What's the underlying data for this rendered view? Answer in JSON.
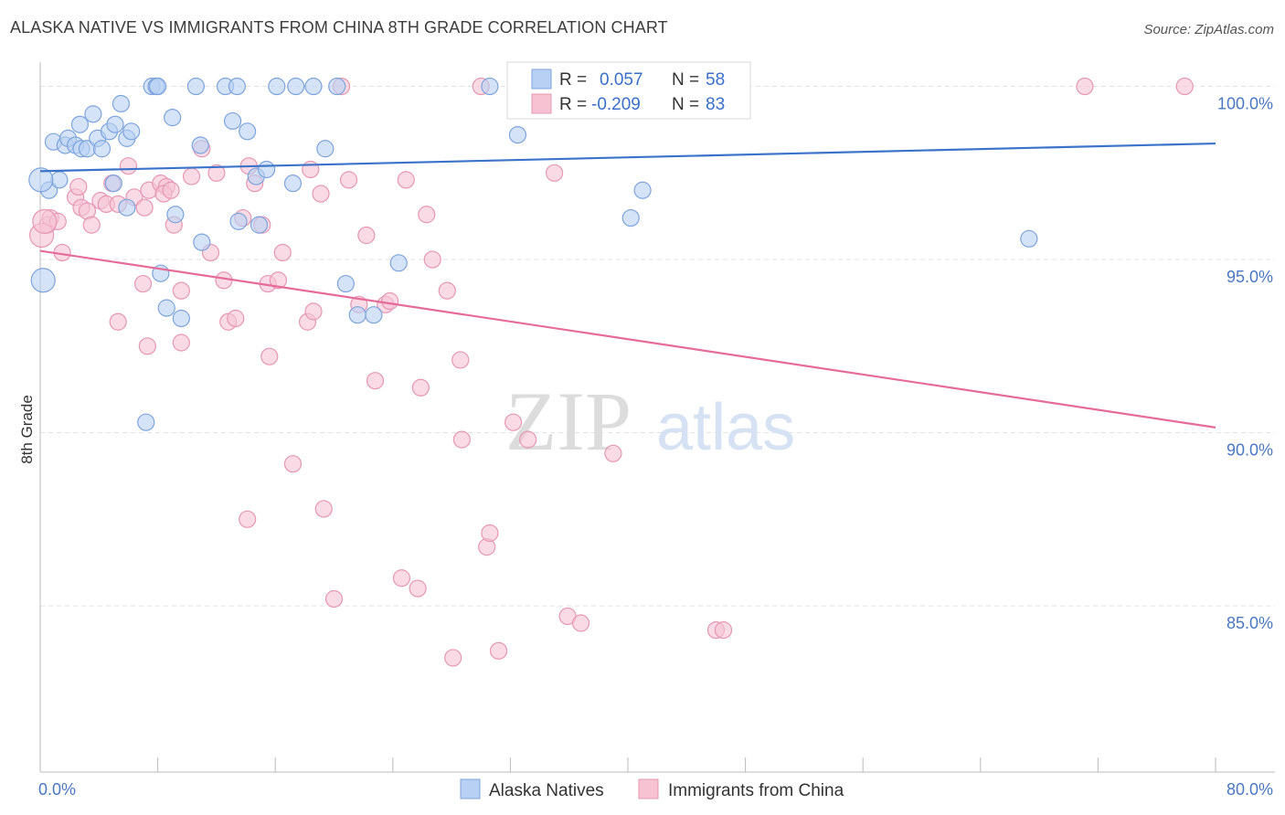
{
  "title": "ALASKA NATIVE VS IMMIGRANTS FROM CHINA 8TH GRADE CORRELATION CHART",
  "source": "Source: ZipAtlas.com",
  "watermark": {
    "zip": "ZIP",
    "atlas": "atlas"
  },
  "colors": {
    "blue": "#3a73c9",
    "blue_fill": "#b8d0f3",
    "pink": "#e56c98",
    "pink_fill": "#f7c3d3",
    "tick": "#4a78c2"
  },
  "chart_data": {
    "type": "scatter",
    "title": "ALASKA NATIVE VS IMMIGRANTS FROM CHINA 8TH GRADE CORRELATION CHART",
    "xlabel": "",
    "ylabel": "8th Grade",
    "xlim": [
      0,
      80
    ],
    "ylim": [
      80.2,
      100.7
    ],
    "x_tick_labels": [
      "0.0%",
      "80.0%"
    ],
    "y_ticks": [
      100,
      95,
      90,
      85
    ],
    "y_tick_labels": [
      "100.0%",
      "95.0%",
      "90.0%",
      "85.0%"
    ],
    "grid": true,
    "legend_position": "bottom-center",
    "series": [
      {
        "name": "Alaska Natives",
        "color": "#3a73c9",
        "R": "0.057",
        "N": "58",
        "trend": {
          "x": [
            0,
            80
          ],
          "y": [
            97.55,
            98.35
          ]
        },
        "points": [
          [
            0.2,
            94.4
          ],
          [
            0.6,
            97.0
          ],
          [
            1.3,
            97.3
          ],
          [
            0.9,
            98.4
          ],
          [
            1.7,
            98.3
          ],
          [
            1.9,
            98.5
          ],
          [
            2.4,
            98.3
          ],
          [
            2.8,
            98.2
          ],
          [
            2.7,
            98.9
          ],
          [
            3.2,
            98.2
          ],
          [
            3.6,
            99.2
          ],
          [
            3.9,
            98.5
          ],
          [
            4.2,
            98.2
          ],
          [
            4.7,
            98.7
          ],
          [
            5.1,
            98.9
          ],
          [
            5.5,
            99.5
          ],
          [
            5.9,
            98.5
          ],
          [
            6.2,
            98.7
          ],
          [
            5.0,
            97.2
          ],
          [
            5.9,
            96.5
          ],
          [
            7.6,
            100.0
          ],
          [
            7.9,
            100.0
          ],
          [
            9.0,
            99.1
          ],
          [
            9.2,
            96.3
          ],
          [
            10.6,
            100.0
          ],
          [
            10.9,
            98.3
          ],
          [
            11.0,
            95.5
          ],
          [
            12.6,
            100.0
          ],
          [
            13.4,
            100.0
          ],
          [
            13.1,
            99.0
          ],
          [
            13.5,
            96.1
          ],
          [
            14.1,
            98.7
          ],
          [
            14.9,
            96.0
          ],
          [
            14.7,
            97.4
          ],
          [
            15.4,
            97.6
          ],
          [
            16.1,
            100.0
          ],
          [
            17.4,
            100.0
          ],
          [
            17.2,
            97.2
          ],
          [
            18.6,
            100.0
          ],
          [
            19.4,
            98.2
          ],
          [
            20.2,
            100.0
          ],
          [
            8.2,
            94.6
          ],
          [
            8.6,
            93.6
          ],
          [
            9.6,
            93.3
          ],
          [
            7.2,
            90.3
          ],
          [
            20.8,
            94.3
          ],
          [
            21.6,
            93.4
          ],
          [
            22.7,
            93.4
          ],
          [
            24.4,
            94.9
          ],
          [
            30.6,
            100.0
          ],
          [
            33.5,
            100.0
          ],
          [
            40.2,
            96.2
          ],
          [
            41.0,
            97.0
          ],
          [
            47.5,
            100.0
          ],
          [
            67.3,
            95.6
          ],
          [
            32.5,
            98.6
          ],
          [
            0.05,
            97.3
          ],
          [
            8.0,
            100.0
          ]
        ]
      },
      {
        "name": "Immigrants from China",
        "color": "#e56c98",
        "R": "-0.209",
        "N": "83",
        "trend": {
          "x": [
            0,
            80
          ],
          "y": [
            95.25,
            90.15
          ]
        },
        "points": [
          [
            0.5,
            96.0
          ],
          [
            0.7,
            96.2
          ],
          [
            1.2,
            96.1
          ],
          [
            1.5,
            95.2
          ],
          [
            2.4,
            96.8
          ],
          [
            2.8,
            96.5
          ],
          [
            2.6,
            97.1
          ],
          [
            3.2,
            96.4
          ],
          [
            3.5,
            96.0
          ],
          [
            4.1,
            96.7
          ],
          [
            4.5,
            96.6
          ],
          [
            4.9,
            97.2
          ],
          [
            5.3,
            96.6
          ],
          [
            6.0,
            97.7
          ],
          [
            6.4,
            96.8
          ],
          [
            7.1,
            96.5
          ],
          [
            7.4,
            97.0
          ],
          [
            8.2,
            97.2
          ],
          [
            8.6,
            97.1
          ],
          [
            8.4,
            96.9
          ],
          [
            8.9,
            97.0
          ],
          [
            9.1,
            96.0
          ],
          [
            9.6,
            94.1
          ],
          [
            10.3,
            97.4
          ],
          [
            11.0,
            98.2
          ],
          [
            11.6,
            95.2
          ],
          [
            12.0,
            97.5
          ],
          [
            12.5,
            94.4
          ],
          [
            12.8,
            93.2
          ],
          [
            13.3,
            93.3
          ],
          [
            13.8,
            96.2
          ],
          [
            14.2,
            97.7
          ],
          [
            14.6,
            97.2
          ],
          [
            15.1,
            96.0
          ],
          [
            15.5,
            94.3
          ],
          [
            16.2,
            94.4
          ],
          [
            16.5,
            95.2
          ],
          [
            18.4,
            97.6
          ],
          [
            19.1,
            96.9
          ],
          [
            18.2,
            93.2
          ],
          [
            18.6,
            93.5
          ],
          [
            21.0,
            97.3
          ],
          [
            21.7,
            93.7
          ],
          [
            22.2,
            95.7
          ],
          [
            22.8,
            91.5
          ],
          [
            23.5,
            93.7
          ],
          [
            23.8,
            93.8
          ],
          [
            24.9,
            97.3
          ],
          [
            25.9,
            91.3
          ],
          [
            26.3,
            96.3
          ],
          [
            26.7,
            95.0
          ],
          [
            27.7,
            94.1
          ],
          [
            28.6,
            92.1
          ],
          [
            28.7,
            89.8
          ],
          [
            32.2,
            90.3
          ],
          [
            33.2,
            89.8
          ],
          [
            30.0,
            100.0
          ],
          [
            20.5,
            100.0
          ],
          [
            35.0,
            97.5
          ],
          [
            39.0,
            89.4
          ],
          [
            46.0,
            84.3
          ],
          [
            7.0,
            94.3
          ],
          [
            7.3,
            92.5
          ],
          [
            5.3,
            93.2
          ],
          [
            9.6,
            92.6
          ],
          [
            15.6,
            92.2
          ],
          [
            17.2,
            89.1
          ],
          [
            14.1,
            87.5
          ],
          [
            19.3,
            87.8
          ],
          [
            20.0,
            85.2
          ],
          [
            24.6,
            85.8
          ],
          [
            25.7,
            85.5
          ],
          [
            28.1,
            83.5
          ],
          [
            30.4,
            86.7
          ],
          [
            30.6,
            87.1
          ],
          [
            31.2,
            83.7
          ],
          [
            35.9,
            84.7
          ],
          [
            36.8,
            84.5
          ],
          [
            46.5,
            84.3
          ],
          [
            71.1,
            100.0
          ],
          [
            77.9,
            100.0
          ],
          [
            0.1,
            95.7
          ],
          [
            0.3,
            96.1
          ]
        ]
      }
    ]
  },
  "legend": [
    {
      "label": "Alaska Natives"
    },
    {
      "label": "Immigrants from China"
    }
  ],
  "stats": {
    "r_label": "R =",
    "n_label": "N =",
    "rows": [
      {
        "r": "0.057",
        "n": "58"
      },
      {
        "r": "-0.209",
        "n": "83"
      }
    ]
  }
}
